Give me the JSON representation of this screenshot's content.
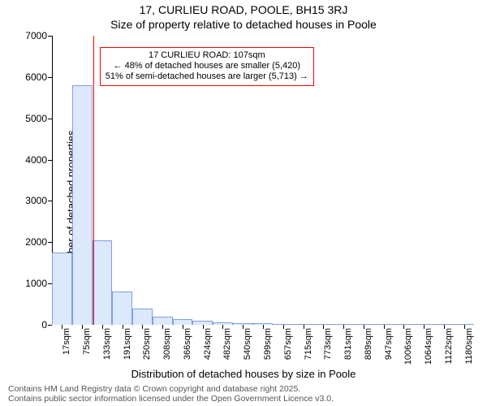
{
  "title_line1": "17, CURLIEU ROAD, POOLE, BH15 3RJ",
  "title_line2": "Size of property relative to detached houses in Poole",
  "ylabel": "Number of detached properties",
  "xlabel": "Distribution of detached houses by size in Poole",
  "chart": {
    "type": "histogram",
    "ylim": [
      0,
      7000
    ],
    "ytick_step": 1000,
    "yticks": [
      0,
      1000,
      2000,
      3000,
      4000,
      5000,
      6000,
      7000
    ],
    "x_categories": [
      "17sqm",
      "75sqm",
      "133sqm",
      "191sqm",
      "250sqm",
      "308sqm",
      "366sqm",
      "424sqm",
      "482sqm",
      "540sqm",
      "599sqm",
      "657sqm",
      "715sqm",
      "773sqm",
      "831sqm",
      "889sqm",
      "947sqm",
      "1006sqm",
      "1064sqm",
      "1122sqm",
      "1180sqm"
    ],
    "values": [
      1750,
      5800,
      2050,
      800,
      400,
      200,
      130,
      90,
      60,
      45,
      35,
      25,
      20,
      15,
      12,
      10,
      8,
      7,
      6,
      5,
      4
    ],
    "bar_fill": "#dce8fb",
    "bar_stroke": "#7ea0e0",
    "bar_stroke_width": 1,
    "bar_gap_ratio": 0.0,
    "background_color": "#ffffff",
    "axis_color": "#000000",
    "title_fontsize": 14,
    "label_fontsize": 13,
    "tick_fontsize": 12,
    "xtick_fontsize": 11,
    "xtick_rotation": -90
  },
  "reference_line": {
    "label": "17 CURLIEU ROAD: 107sqm",
    "x_value_sqm": 107,
    "x_category_index": 1.55,
    "color": "#ff0000",
    "width": 1
  },
  "annotation": {
    "lines": [
      "17 CURLIEU ROAD: 107sqm",
      "← 48% of detached houses are smaller (5,420)",
      "51% of semi-detached houses are larger (5,713) →"
    ],
    "border_color": "#ff0000",
    "border_width": 1,
    "background": "#ffffff",
    "fontsize": 11
  },
  "attribution": {
    "line1": "Contains HM Land Registry data © Crown copyright and database right 2025.",
    "line2": "Contains public sector information licensed under the Open Government Licence v3.0."
  }
}
